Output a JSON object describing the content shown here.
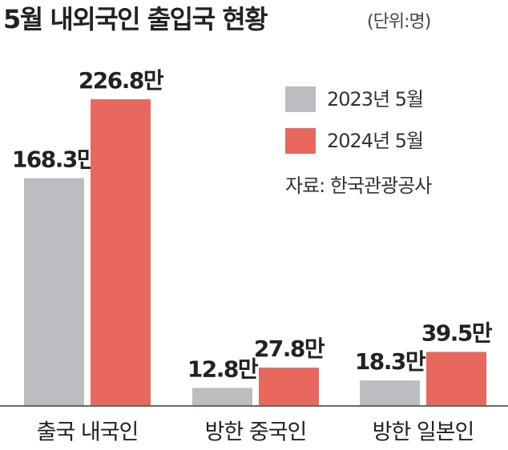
{
  "chart_data": {
    "type": "bar",
    "title": "5월 내외국인 출입국 현황",
    "subtitle": "(단위:명)",
    "categories": [
      "출국 내국인",
      "방한 중국인",
      "방한 일본인"
    ],
    "series": [
      {
        "name": "2023년 5월",
        "color": "#bcbdc0",
        "values": [
          168.3,
          12.8,
          18.3
        ],
        "value_labels": [
          "168.3만",
          "12.8만",
          "18.3만"
        ]
      },
      {
        "name": "2024년 5월",
        "color": "#e8685d",
        "values": [
          226.8,
          27.8,
          39.5
        ],
        "value_labels": [
          "226.8만",
          "27.8만",
          "39.5만"
        ]
      }
    ],
    "source": "자료: 한국관광공사"
  }
}
